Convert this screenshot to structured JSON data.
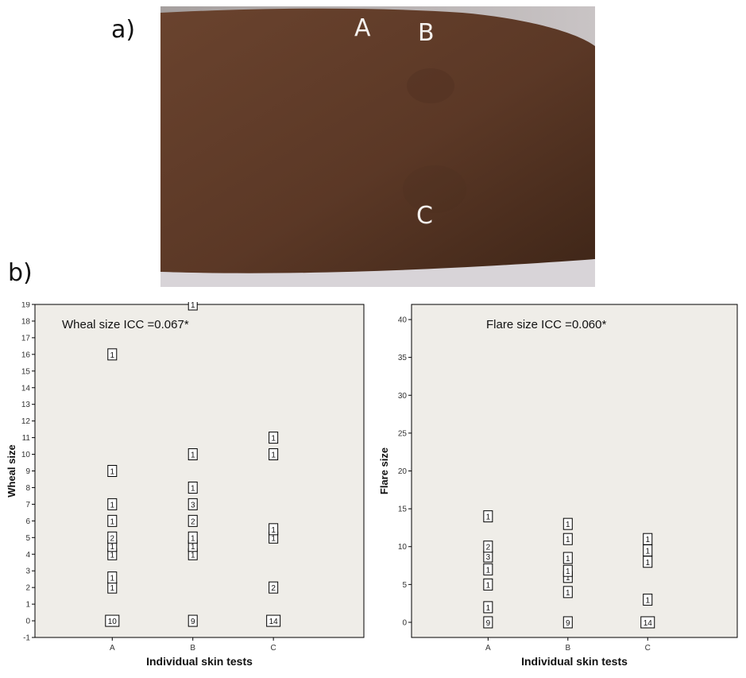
{
  "panel_labels": {
    "a": "a)",
    "b": "b)"
  },
  "photo": {
    "description_letters": [
      "A",
      "B",
      "C"
    ],
    "skin_color": "#5e3a27"
  },
  "chart_data": [
    {
      "type": "scatter",
      "title": "Wheal size ICC =0.067*",
      "xlabel": "Individual skin tests",
      "ylabel": "Wheal size",
      "categories": [
        "A",
        "B",
        "C"
      ],
      "ylim": [
        -1,
        19
      ],
      "yticks": [
        -1,
        0,
        1,
        2,
        3,
        4,
        5,
        6,
        7,
        8,
        9,
        10,
        11,
        12,
        13,
        14,
        15,
        16,
        17,
        18,
        19
      ],
      "background": "#efede8",
      "points": [
        {
          "x": "A",
          "y": 0,
          "count": 10
        },
        {
          "x": "A",
          "y": 2,
          "count": 1
        },
        {
          "x": "A",
          "y": 2.6,
          "count": 1
        },
        {
          "x": "A",
          "y": 4,
          "count": 1
        },
        {
          "x": "A",
          "y": 4.5,
          "count": 1
        },
        {
          "x": "A",
          "y": 5,
          "count": 2
        },
        {
          "x": "A",
          "y": 6,
          "count": 1
        },
        {
          "x": "A",
          "y": 7,
          "count": 1
        },
        {
          "x": "A",
          "y": 9,
          "count": 1
        },
        {
          "x": "A",
          "y": 16,
          "count": 1
        },
        {
          "x": "B",
          "y": 0,
          "count": 9
        },
        {
          "x": "B",
          "y": 4,
          "count": 1
        },
        {
          "x": "B",
          "y": 4.5,
          "count": 1
        },
        {
          "x": "B",
          "y": 5,
          "count": 1
        },
        {
          "x": "B",
          "y": 6,
          "count": 2
        },
        {
          "x": "B",
          "y": 7,
          "count": 3
        },
        {
          "x": "B",
          "y": 8,
          "count": 1
        },
        {
          "x": "B",
          "y": 10,
          "count": 1
        },
        {
          "x": "B",
          "y": 19,
          "count": 1
        },
        {
          "x": "C",
          "y": 0,
          "count": 14
        },
        {
          "x": "C",
          "y": 2,
          "count": 2
        },
        {
          "x": "C",
          "y": 5,
          "count": 1
        },
        {
          "x": "C",
          "y": 5.5,
          "count": 1
        },
        {
          "x": "C",
          "y": 10,
          "count": 1
        },
        {
          "x": "C",
          "y": 11,
          "count": 1
        }
      ]
    },
    {
      "type": "scatter",
      "title": "Flare size ICC =0.060*",
      "xlabel": "Individual skin tests",
      "ylabel": "Flare size",
      "categories": [
        "A",
        "B",
        "C"
      ],
      "ylim": [
        -2,
        42
      ],
      "yticks": [
        0,
        5,
        10,
        15,
        20,
        25,
        30,
        35,
        40
      ],
      "background": "#efede8",
      "points": [
        {
          "x": "A",
          "y": 0,
          "count": 9
        },
        {
          "x": "A",
          "y": 2,
          "count": 1
        },
        {
          "x": "A",
          "y": 5,
          "count": 1
        },
        {
          "x": "A",
          "y": 7,
          "count": 1
        },
        {
          "x": "A",
          "y": 8.7,
          "count": 3
        },
        {
          "x": "A",
          "y": 10,
          "count": 2
        },
        {
          "x": "A",
          "y": 14,
          "count": 1
        },
        {
          "x": "B",
          "y": 0,
          "count": 9
        },
        {
          "x": "B",
          "y": 4,
          "count": 1
        },
        {
          "x": "B",
          "y": 6,
          "count": 1
        },
        {
          "x": "B",
          "y": 6.8,
          "count": 1
        },
        {
          "x": "B",
          "y": 8.5,
          "count": 1
        },
        {
          "x": "B",
          "y": 11,
          "count": 1
        },
        {
          "x": "B",
          "y": 13,
          "count": 1
        },
        {
          "x": "C",
          "y": 0,
          "count": 14
        },
        {
          "x": "C",
          "y": 3,
          "count": 1
        },
        {
          "x": "C",
          "y": 8,
          "count": 1
        },
        {
          "x": "C",
          "y": 9.5,
          "count": 1
        },
        {
          "x": "C",
          "y": 11,
          "count": 1
        }
      ]
    }
  ]
}
